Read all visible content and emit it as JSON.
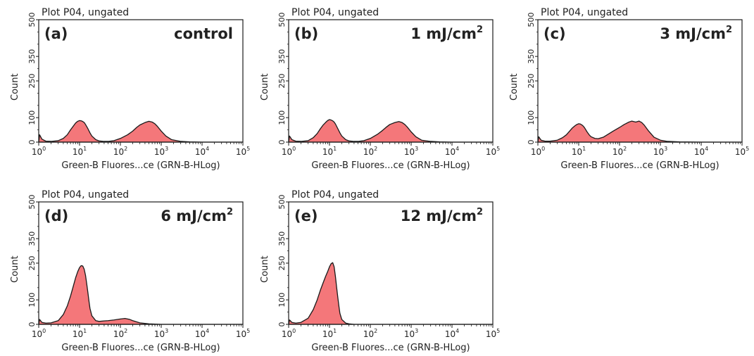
{
  "figure": {
    "plot_header": "Plot P04, ungated",
    "x_axis_title": "Green-B Fluores...ce (GRN-B-HLog)",
    "y_axis_title": "Count",
    "y_ticks": [
      "0",
      "100",
      "250",
      "350",
      "500"
    ],
    "x_tick_base": "10",
    "x_tick_exponents": [
      "0",
      "1",
      "2",
      "3",
      "4",
      "5"
    ],
    "fill_color": "#f4777a",
    "line_color": "#1a1a1a"
  },
  "chart_data": [
    {
      "type": "area",
      "panel": "(a)",
      "condition": "control",
      "condition_superscript": "",
      "xlabel": "Green-B Fluores...ce (GRN-B-HLog)",
      "ylabel": "Count",
      "x_scale": "log",
      "xlim": [
        1,
        100000
      ],
      "ylim": [
        0,
        500
      ],
      "x": [
        1,
        1.05,
        1.2,
        1.5,
        2,
        3,
        4,
        5,
        6,
        7,
        8,
        9,
        10,
        11,
        12,
        13,
        14,
        16,
        18,
        20,
        25,
        30,
        40,
        50,
        70,
        100,
        150,
        200,
        250,
        300,
        400,
        500,
        600,
        700,
        800,
        1000,
        1300,
        1800,
        3000,
        5000,
        10000,
        100000
      ],
      "y": [
        0,
        30,
        12,
        4,
        3,
        6,
        15,
        30,
        50,
        65,
        78,
        85,
        88,
        87,
        84,
        80,
        72,
        55,
        38,
        25,
        10,
        5,
        3,
        3,
        6,
        15,
        30,
        45,
        60,
        70,
        80,
        85,
        82,
        75,
        65,
        45,
        25,
        10,
        3,
        1,
        0,
        0
      ]
    },
    {
      "type": "area",
      "panel": "(b)",
      "condition": "1 mJ/cm",
      "condition_superscript": "2",
      "xlabel": "Green-B Fluores...ce (GRN-B-HLog)",
      "ylabel": "Count",
      "x_scale": "log",
      "xlim": [
        1,
        100000
      ],
      "ylim": [
        0,
        500
      ],
      "x": [
        1,
        1.05,
        1.2,
        1.5,
        2,
        3,
        4,
        5,
        6,
        7,
        8,
        9,
        10,
        11,
        12,
        13,
        14,
        16,
        18,
        20,
        25,
        30,
        40,
        50,
        70,
        100,
        150,
        200,
        250,
        300,
        400,
        500,
        600,
        700,
        800,
        1000,
        1300,
        1800,
        3000,
        5000,
        10000,
        100000
      ],
      "y": [
        0,
        25,
        10,
        4,
        3,
        6,
        18,
        35,
        55,
        70,
        80,
        88,
        92,
        90,
        87,
        82,
        74,
        55,
        38,
        25,
        10,
        5,
        3,
        3,
        6,
        15,
        32,
        48,
        62,
        72,
        80,
        84,
        80,
        72,
        62,
        42,
        22,
        8,
        3,
        1,
        0,
        0
      ]
    },
    {
      "type": "area",
      "panel": "(c)",
      "condition": "3 mJ/cm",
      "condition_superscript": "2",
      "xlabel": "Green-B Fluores...ce (GRN-B-HLog)",
      "ylabel": "Count",
      "x_scale": "log",
      "xlim": [
        1,
        100000
      ],
      "ylim": [
        0,
        500
      ],
      "x": [
        1,
        1.05,
        1.2,
        1.5,
        2,
        3,
        4,
        5,
        6,
        7,
        8,
        9,
        10,
        11,
        12,
        13,
        14,
        16,
        18,
        20,
        25,
        30,
        40,
        50,
        70,
        100,
        130,
        170,
        200,
        250,
        300,
        350,
        400,
        500,
        700,
        1000,
        1500,
        3000,
        10000,
        100000
      ],
      "y": [
        0,
        22,
        8,
        4,
        4,
        8,
        18,
        30,
        45,
        58,
        66,
        72,
        75,
        74,
        70,
        65,
        58,
        42,
        30,
        22,
        15,
        14,
        20,
        30,
        45,
        60,
        72,
        82,
        86,
        82,
        86,
        80,
        70,
        48,
        20,
        8,
        3,
        1,
        0,
        0
      ]
    },
    {
      "type": "area",
      "panel": "(d)",
      "condition": "6 mJ/cm",
      "condition_superscript": "2",
      "xlabel": "Green-B Fluores...ce (GRN-B-HLog)",
      "ylabel": "Count",
      "x_scale": "log",
      "xlim": [
        1,
        100000
      ],
      "ylim": [
        0,
        500
      ],
      "x": [
        1,
        1.05,
        1.2,
        1.5,
        2,
        3,
        4,
        5,
        6,
        7,
        8,
        9,
        10,
        11,
        12,
        13,
        14,
        15,
        16,
        17,
        18,
        20,
        25,
        30,
        40,
        50,
        70,
        100,
        130,
        170,
        200,
        300,
        500,
        1000,
        100000
      ],
      "y": [
        0,
        20,
        8,
        5,
        6,
        15,
        40,
        75,
        115,
        155,
        190,
        215,
        232,
        240,
        238,
        225,
        200,
        165,
        130,
        95,
        65,
        35,
        15,
        12,
        14,
        15,
        18,
        22,
        24,
        20,
        15,
        6,
        2,
        0,
        0
      ]
    },
    {
      "type": "area",
      "panel": "(e)",
      "condition": "12 mJ/cm",
      "condition_superscript": "2",
      "xlabel": "Green-B Fluores...ce (GRN-B-HLog)",
      "ylabel": "Count",
      "x_scale": "log",
      "xlim": [
        1,
        100000
      ],
      "ylim": [
        0,
        500
      ],
      "x": [
        1,
        1.05,
        1.2,
        1.5,
        2,
        3,
        4,
        5,
        6,
        7,
        8,
        9,
        10,
        11,
        12,
        13,
        14,
        15,
        16,
        17,
        18,
        20,
        25,
        30,
        40,
        100000
      ],
      "y": [
        0,
        18,
        8,
        5,
        8,
        25,
        60,
        100,
        140,
        170,
        195,
        215,
        235,
        248,
        252,
        235,
        195,
        150,
        110,
        75,
        45,
        20,
        5,
        2,
        0,
        0
      ]
    }
  ]
}
